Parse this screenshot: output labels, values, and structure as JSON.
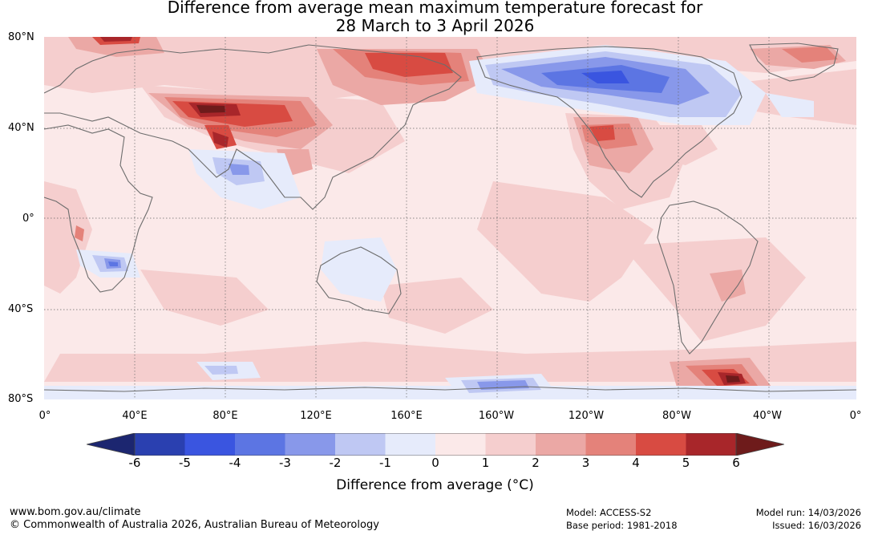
{
  "title": {
    "line1": "Difference from average mean maximum temperature forecast for",
    "line2": "28 March to 3 April 2026"
  },
  "axes": {
    "lat_labels": [
      "80°N",
      "40°N",
      "0°",
      "40°S",
      "80°S"
    ],
    "lon_labels": [
      "0°",
      "40°E",
      "80°E",
      "120°E",
      "160°E",
      "160°W",
      "120°W",
      "80°W",
      "40°W",
      "0°"
    ]
  },
  "colorbar": {
    "ticks": [
      "-6",
      "-5",
      "-4",
      "-3",
      "-2",
      "-1",
      "0",
      "1",
      "2",
      "3",
      "4",
      "5",
      "6"
    ],
    "label": "Difference from average (°C)",
    "colors": {
      "below_min": "#1c2670",
      "c_-6_-5": "#2a40b0",
      "c_-5_-4": "#3a55e0",
      "c_-4_-3": "#5c75e3",
      "c_-3_-2": "#8898ea",
      "c_-2_-1": "#bfc8f3",
      "c_-1_0": "#e6ebfb",
      "c_0_1": "#fbe9e9",
      "c_1_2": "#f5cece",
      "c_2_3": "#eba8a5",
      "c_3_4": "#e4827a",
      "c_4_5": "#d84b42",
      "c_5_6": "#a8262a",
      "above_max": "#6e1b1b"
    }
  },
  "footer": {
    "website": "www.bom.gov.au/climate",
    "copyright": "© Commonwealth of Australia 2026, Australian Bureau of Meteorology",
    "model": "Model: ACCESS-S2",
    "base_period": "Base period: 1981-2018",
    "model_run": "Model run: 14/03/2026",
    "issued": "Issued: 16/03/2026"
  }
}
